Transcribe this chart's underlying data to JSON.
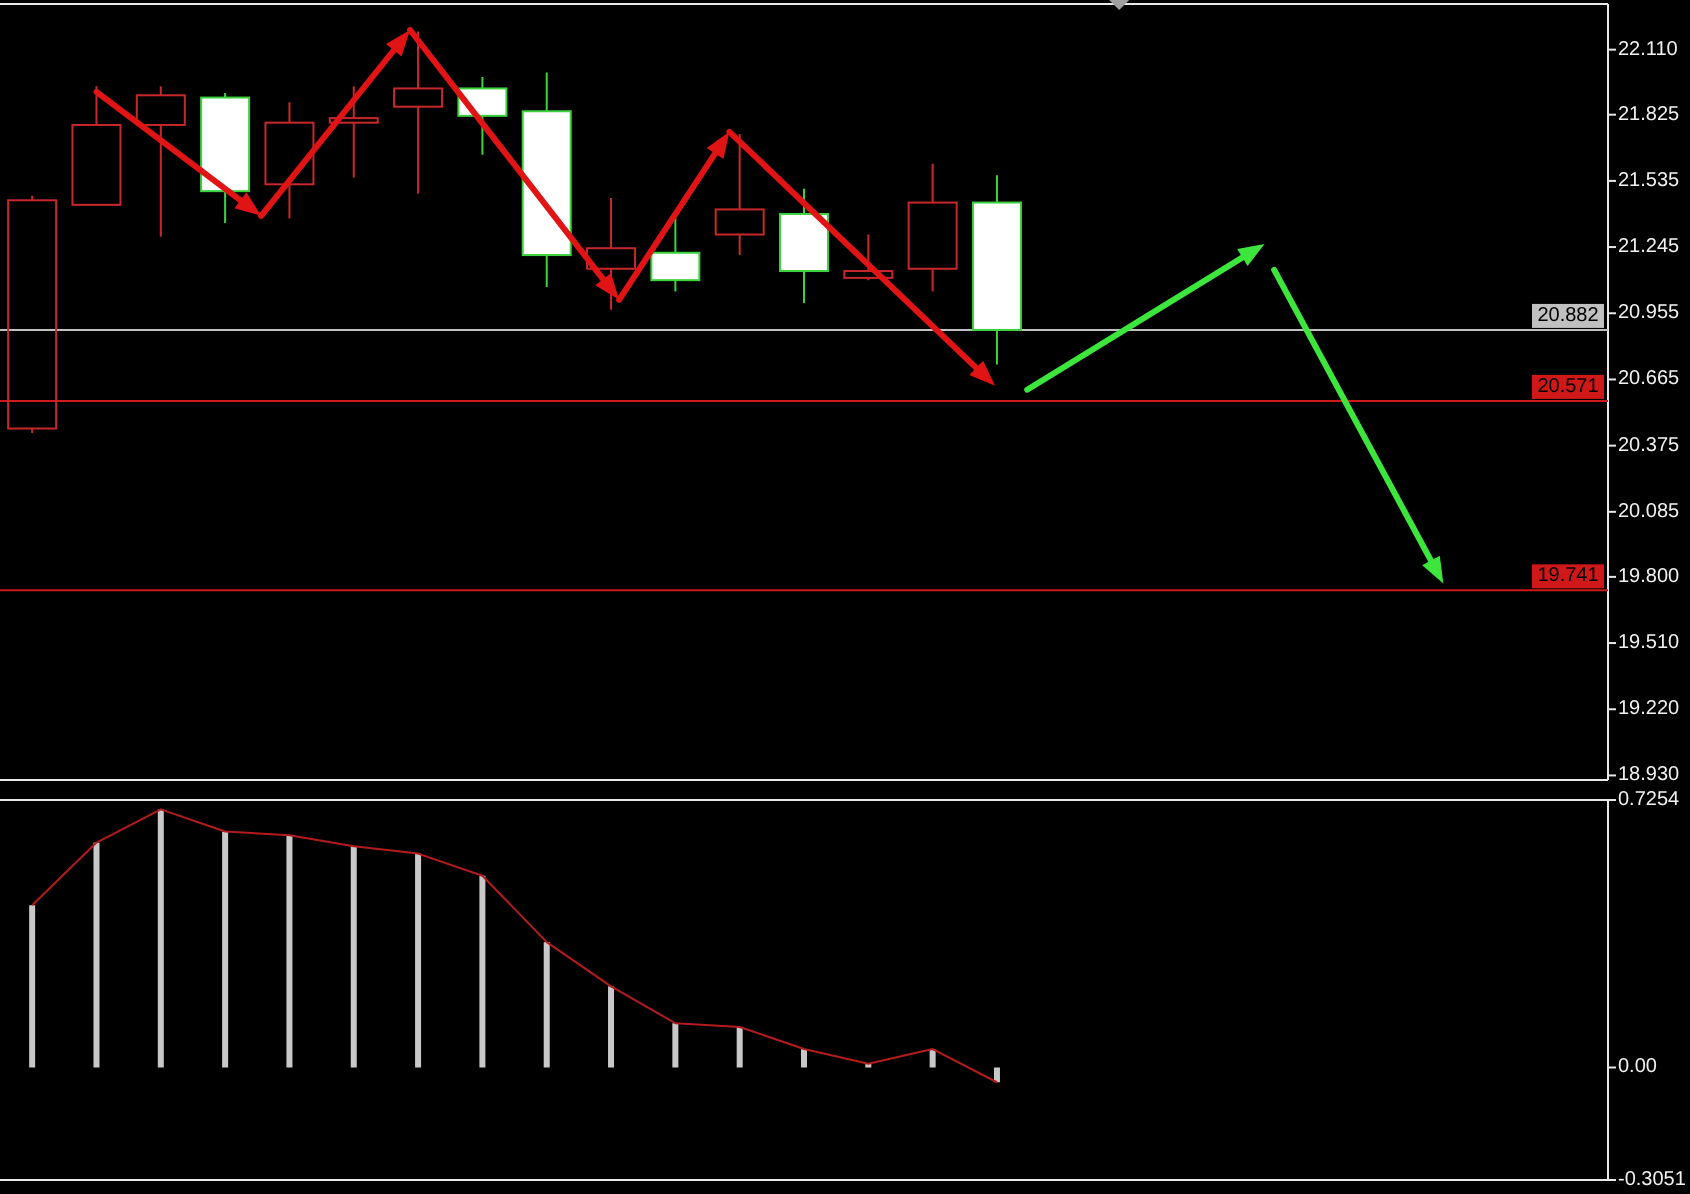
{
  "chart_data": [
    {
      "type": "candlestick",
      "categories": [
        null,
        null,
        null,
        null,
        null,
        null,
        null,
        null,
        null,
        null,
        null,
        null,
        null,
        null,
        null,
        null,
        null,
        null,
        null,
        null,
        null,
        null,
        null,
        null,
        null
      ],
      "ohlc": [
        [
          20.45,
          21.47,
          20.43,
          21.45
        ],
        [
          21.43,
          21.95,
          21.43,
          21.78
        ],
        [
          21.78,
          21.95,
          21.29,
          21.91
        ],
        [
          21.9,
          21.92,
          21.35,
          21.49
        ],
        [
          21.52,
          21.88,
          21.37,
          21.79
        ],
        [
          21.79,
          21.95,
          21.55,
          21.81
        ],
        [
          21.86,
          22.19,
          21.48,
          21.94
        ],
        [
          21.94,
          21.99,
          21.65,
          21.82
        ],
        [
          21.84,
          22.01,
          21.07,
          21.21
        ],
        [
          21.15,
          21.46,
          20.97,
          21.24
        ],
        [
          21.22,
          21.38,
          21.05,
          21.1
        ],
        [
          21.3,
          21.74,
          21.21,
          21.41
        ],
        [
          21.39,
          21.5,
          21.0,
          21.14
        ],
        [
          21.11,
          21.3,
          21.1,
          21.14
        ],
        [
          21.15,
          21.61,
          21.05,
          21.44
        ],
        [
          21.44,
          21.56,
          20.73,
          20.882
        ],
        null,
        null,
        null,
        null,
        null,
        null,
        null,
        null,
        null
      ],
      "colors": [
        "#c8282a",
        "#c8282a",
        "#c8282a",
        "#ffffff",
        "#c8282a",
        "#c8282a",
        "#c8282a",
        "#ffffff",
        "#ffffff",
        "#c8282a",
        "#ffffff",
        "#c8282a",
        "#ffffff",
        "#c8282a",
        "#c8282a",
        "#ffffff",
        null,
        null,
        null,
        null,
        null,
        null,
        null,
        null,
        null
      ],
      "ylim": [
        18.91,
        22.31
      ],
      "yticks": [
        {
          "value": 18.93,
          "label": "18.930"
        },
        {
          "value": 19.22,
          "label": "19.220"
        },
        {
          "value": 19.51,
          "label": "19.510"
        },
        {
          "value": 19.8,
          "label": "19.800"
        },
        {
          "value": 20.085,
          "label": "20.085"
        },
        {
          "value": 20.375,
          "label": "20.375"
        },
        {
          "value": 20.665,
          "label": "20.665"
        },
        {
          "value": 20.955,
          "label": "20.955"
        },
        {
          "value": 21.245,
          "label": "21.245"
        },
        {
          "value": 21.535,
          "label": "21.535"
        },
        {
          "value": 21.825,
          "label": "21.825"
        },
        {
          "value": 22.11,
          "label": "22.110"
        }
      ],
      "ref_lines": [
        {
          "axis": "y",
          "value": 20.882,
          "label": "20.882",
          "color": "#c0c0c0"
        },
        {
          "axis": "y",
          "value": 20.571,
          "label": "20.571",
          "color": "#d01818"
        },
        {
          "axis": "y",
          "value": 19.741,
          "label": "19.741",
          "color": "#d01818"
        }
      ],
      "tick_labels": "y"
    },
    {
      "type": "bar",
      "categories": [
        null,
        null,
        null,
        null,
        null,
        null,
        null,
        null,
        null,
        null,
        null,
        null,
        null,
        null,
        null,
        null,
        null,
        null,
        null,
        null,
        null,
        null,
        null,
        null,
        null
      ],
      "series": [
        {
          "type": "bar",
          "color": "#c8c8c8",
          "values": [
            0.44,
            0.61,
            0.7,
            0.64,
            0.63,
            0.6,
            0.58,
            0.52,
            0.34,
            0.22,
            0.12,
            0.11,
            0.05,
            0.01,
            0.05,
            -0.04,
            null,
            null,
            null,
            null,
            null,
            null,
            null,
            null,
            null
          ]
        },
        {
          "type": "line",
          "color": "#b41c1c",
          "values": [
            0.44,
            0.61,
            0.7,
            0.64,
            0.63,
            0.6,
            0.58,
            0.52,
            0.34,
            0.22,
            0.12,
            0.11,
            0.05,
            0.01,
            0.05,
            -0.04,
            null,
            null,
            null,
            null,
            null,
            null,
            null,
            null,
            null
          ]
        }
      ],
      "ylim": [
        -0.3051,
        0.7254
      ],
      "yticks": [
        -0.3051,
        {
          "value": 0,
          "label": "0.00"
        },
        0.7254
      ],
      "tick_labels": "y"
    }
  ]
}
